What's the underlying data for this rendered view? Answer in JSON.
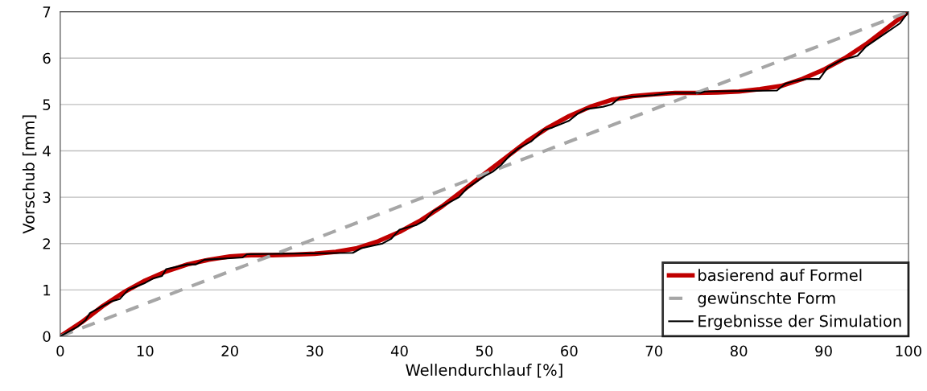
{
  "chart_data": {
    "type": "line",
    "xlabel": "Wellendurchlauf [%]",
    "ylabel": "Vorschub [mm]",
    "xlim": [
      0,
      100
    ],
    "ylim": [
      0,
      7
    ],
    "xticks": [
      0,
      10,
      20,
      30,
      40,
      50,
      60,
      70,
      80,
      90,
      100
    ],
    "yticks": [
      0,
      1,
      2,
      3,
      4,
      5,
      6,
      7
    ],
    "grid": "y",
    "legend": "bottom right",
    "marker": "none",
    "series": [
      {
        "name": "basierend auf Formel",
        "color": "#c00000",
        "line_style": "solid",
        "x": [
          0,
          2.5,
          5,
          7.5,
          10,
          12.5,
          15,
          17.5,
          20,
          22.5,
          25,
          27.5,
          30,
          32.5,
          35,
          37.5,
          40,
          42.5,
          45,
          47.5,
          50,
          52.5,
          55,
          57.5,
          60,
          62.5,
          65,
          67.5,
          70,
          72.5,
          75,
          77.5,
          80,
          82.5,
          85,
          87.5,
          90,
          92.5,
          95,
          97.5,
          100
        ],
        "values": [
          0,
          0.3,
          0.65,
          0.95,
          1.2,
          1.4,
          1.55,
          1.65,
          1.72,
          1.75,
          1.75,
          1.76,
          1.78,
          1.82,
          1.9,
          2.05,
          2.25,
          2.5,
          2.8,
          3.15,
          3.5,
          3.85,
          4.2,
          4.5,
          4.75,
          4.95,
          5.1,
          5.18,
          5.22,
          5.25,
          5.25,
          5.26,
          5.28,
          5.33,
          5.4,
          5.55,
          5.75,
          6.0,
          6.3,
          6.65,
          7
        ]
      },
      {
        "name": "gewünschte Form",
        "color": "#a6a6a6",
        "line_style": "dashed",
        "x": [
          0,
          100
        ],
        "values": [
          0,
          7
        ]
      },
      {
        "name": "Ergebnisse der Simulation",
        "color": "#000000",
        "line_style": "solid",
        "x": [
          0,
          2,
          3,
          3.5,
          6,
          7,
          8,
          10,
          11,
          12,
          12.5,
          15,
          16,
          17,
          21.5,
          22,
          34.5,
          35.5,
          38,
          39,
          40,
          42,
          43,
          44,
          46,
          47,
          48,
          50,
          51,
          52,
          53,
          54,
          55.5,
          57,
          58,
          60,
          61,
          62,
          64,
          65,
          66,
          70,
          72,
          75.5,
          76,
          84.5,
          85.5,
          86.5,
          88,
          89.5,
          90.5,
          92,
          93,
          94,
          95,
          97,
          99,
          100
        ],
        "values": [
          0,
          0.2,
          0.35,
          0.5,
          0.75,
          0.8,
          1.0,
          1.15,
          1.25,
          1.3,
          1.45,
          1.55,
          1.55,
          1.65,
          1.7,
          1.77,
          1.8,
          1.9,
          2.0,
          2.1,
          2.3,
          2.4,
          2.5,
          2.7,
          2.9,
          3.0,
          3.2,
          3.45,
          3.55,
          3.7,
          3.9,
          4.05,
          4.2,
          4.45,
          4.5,
          4.65,
          4.8,
          4.9,
          4.95,
          5.0,
          5.15,
          5.2,
          5.25,
          5.25,
          5.28,
          5.3,
          5.45,
          5.5,
          5.55,
          5.55,
          5.8,
          5.95,
          6.0,
          6.05,
          6.25,
          6.5,
          6.75,
          7
        ]
      }
    ]
  }
}
